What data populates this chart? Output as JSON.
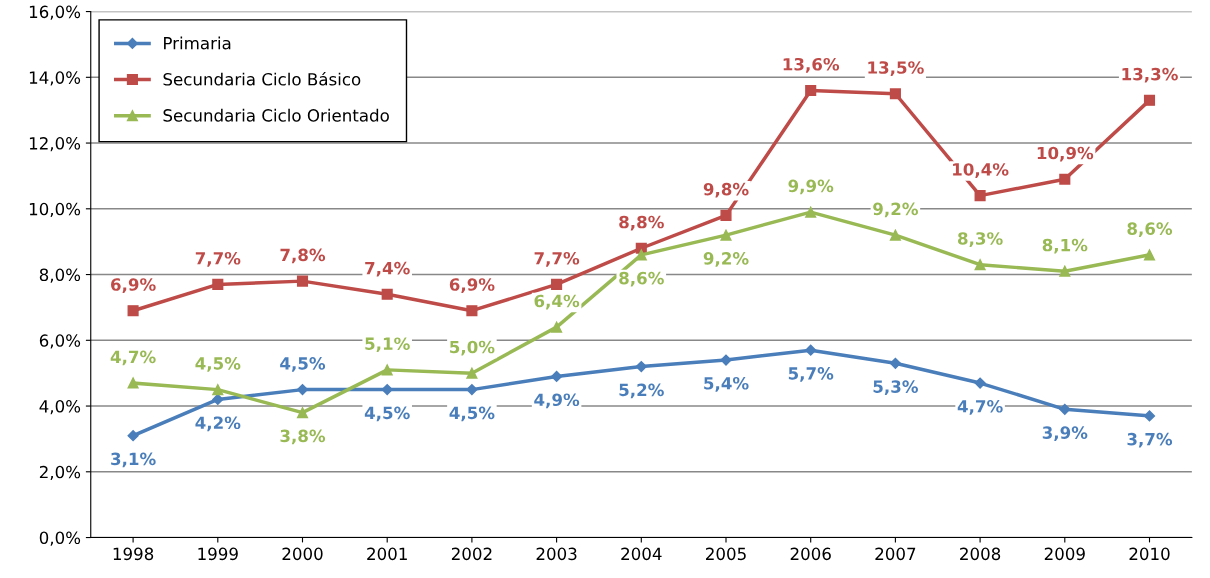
{
  "chart_data": {
    "type": "line",
    "categories": [
      "1998",
      "1999",
      "2000",
      "2001",
      "2002",
      "2003",
      "2004",
      "2005",
      "2006",
      "2007",
      "2008",
      "2009",
      "2010"
    ],
    "series": [
      {
        "name": "Primaria",
        "color": "#4a7ebb",
        "marker": "diamond",
        "values": [
          3.1,
          4.2,
          4.5,
          4.5,
          4.5,
          4.9,
          5.2,
          5.4,
          5.7,
          5.3,
          4.7,
          3.9,
          3.7
        ],
        "value_labels": [
          "3,1%",
          "4,2%",
          "4,5%",
          "4,5%",
          "4,5%",
          "4,9%",
          "5,2%",
          "5,4%",
          "5,7%",
          "5,3%",
          "4,7%",
          "3,9%",
          "3,7%"
        ]
      },
      {
        "name": "Secundaria Ciclo Básico",
        "color": "#be4b48",
        "marker": "square",
        "values": [
          6.9,
          7.7,
          7.8,
          7.4,
          6.9,
          7.7,
          8.8,
          9.8,
          13.6,
          13.5,
          10.4,
          10.9,
          13.3
        ],
        "value_labels": [
          "6,9%",
          "7,7%",
          "7,8%",
          "7,4%",
          "6,9%",
          "7,7%",
          "8,8%",
          "9,8%",
          "13,6%",
          "13,5%",
          "10,4%",
          "10,9%",
          "13,3%"
        ]
      },
      {
        "name": "Secundaria Ciclo Orientado",
        "color": "#98b954",
        "marker": "triangle",
        "values": [
          4.7,
          4.5,
          3.8,
          5.1,
          5.0,
          6.4,
          8.6,
          9.2,
          9.9,
          9.2,
          8.3,
          8.1,
          8.6
        ],
        "value_labels": [
          "4,7%",
          "4,5%",
          "3,8%",
          "5,1%",
          "5,0%",
          "6,4%",
          "8,6%",
          "9,2%",
          "9,9%",
          "9,2%",
          "8,3%",
          "8,1%",
          "8,6%"
        ]
      }
    ],
    "ylim": [
      0,
      16
    ],
    "yticks": [
      {
        "value": 0,
        "label": "0,0%"
      },
      {
        "value": 2,
        "label": "2,0%"
      },
      {
        "value": 4,
        "label": "4,0%"
      },
      {
        "value": 6,
        "label": "6,0%"
      },
      {
        "value": 8,
        "label": "8,0%"
      },
      {
        "value": 10,
        "label": "10,0%"
      },
      {
        "value": 12,
        "label": "12,0%"
      },
      {
        "value": 14,
        "label": "14,0%"
      },
      {
        "value": 16,
        "label": "16,0%"
      }
    ],
    "grid": "y",
    "legend": "top left",
    "line_style": "solid"
  }
}
